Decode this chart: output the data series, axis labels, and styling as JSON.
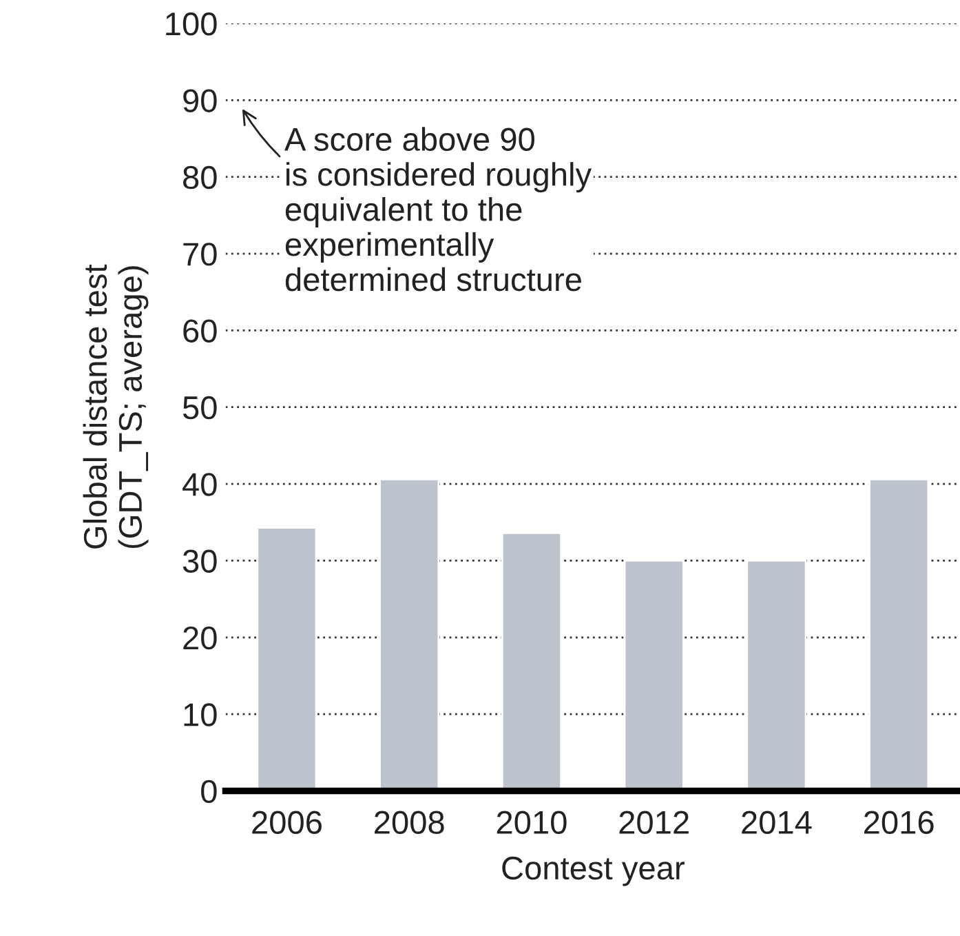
{
  "chart_data": {
    "type": "bar",
    "xlabel": "Contest year",
    "ylabel": "Global distance test\n(GDT_TS; average)",
    "categories": [
      "2006",
      "2008",
      "2010",
      "2012",
      "2014",
      "2016"
    ],
    "values": [
      34.3,
      40.6,
      33.6,
      30,
      30,
      40.6
    ],
    "color": "#bcc3cc",
    "ylim": [
      0,
      100
    ],
    "yticks": [
      0,
      10,
      20,
      30,
      40,
      50,
      60,
      70,
      80,
      90,
      100
    ],
    "grid": "y",
    "annotations": [
      "A score above 90\nis considered roughly\nequivalent to the\nexperimentally\ndetermined structure"
    ]
  }
}
